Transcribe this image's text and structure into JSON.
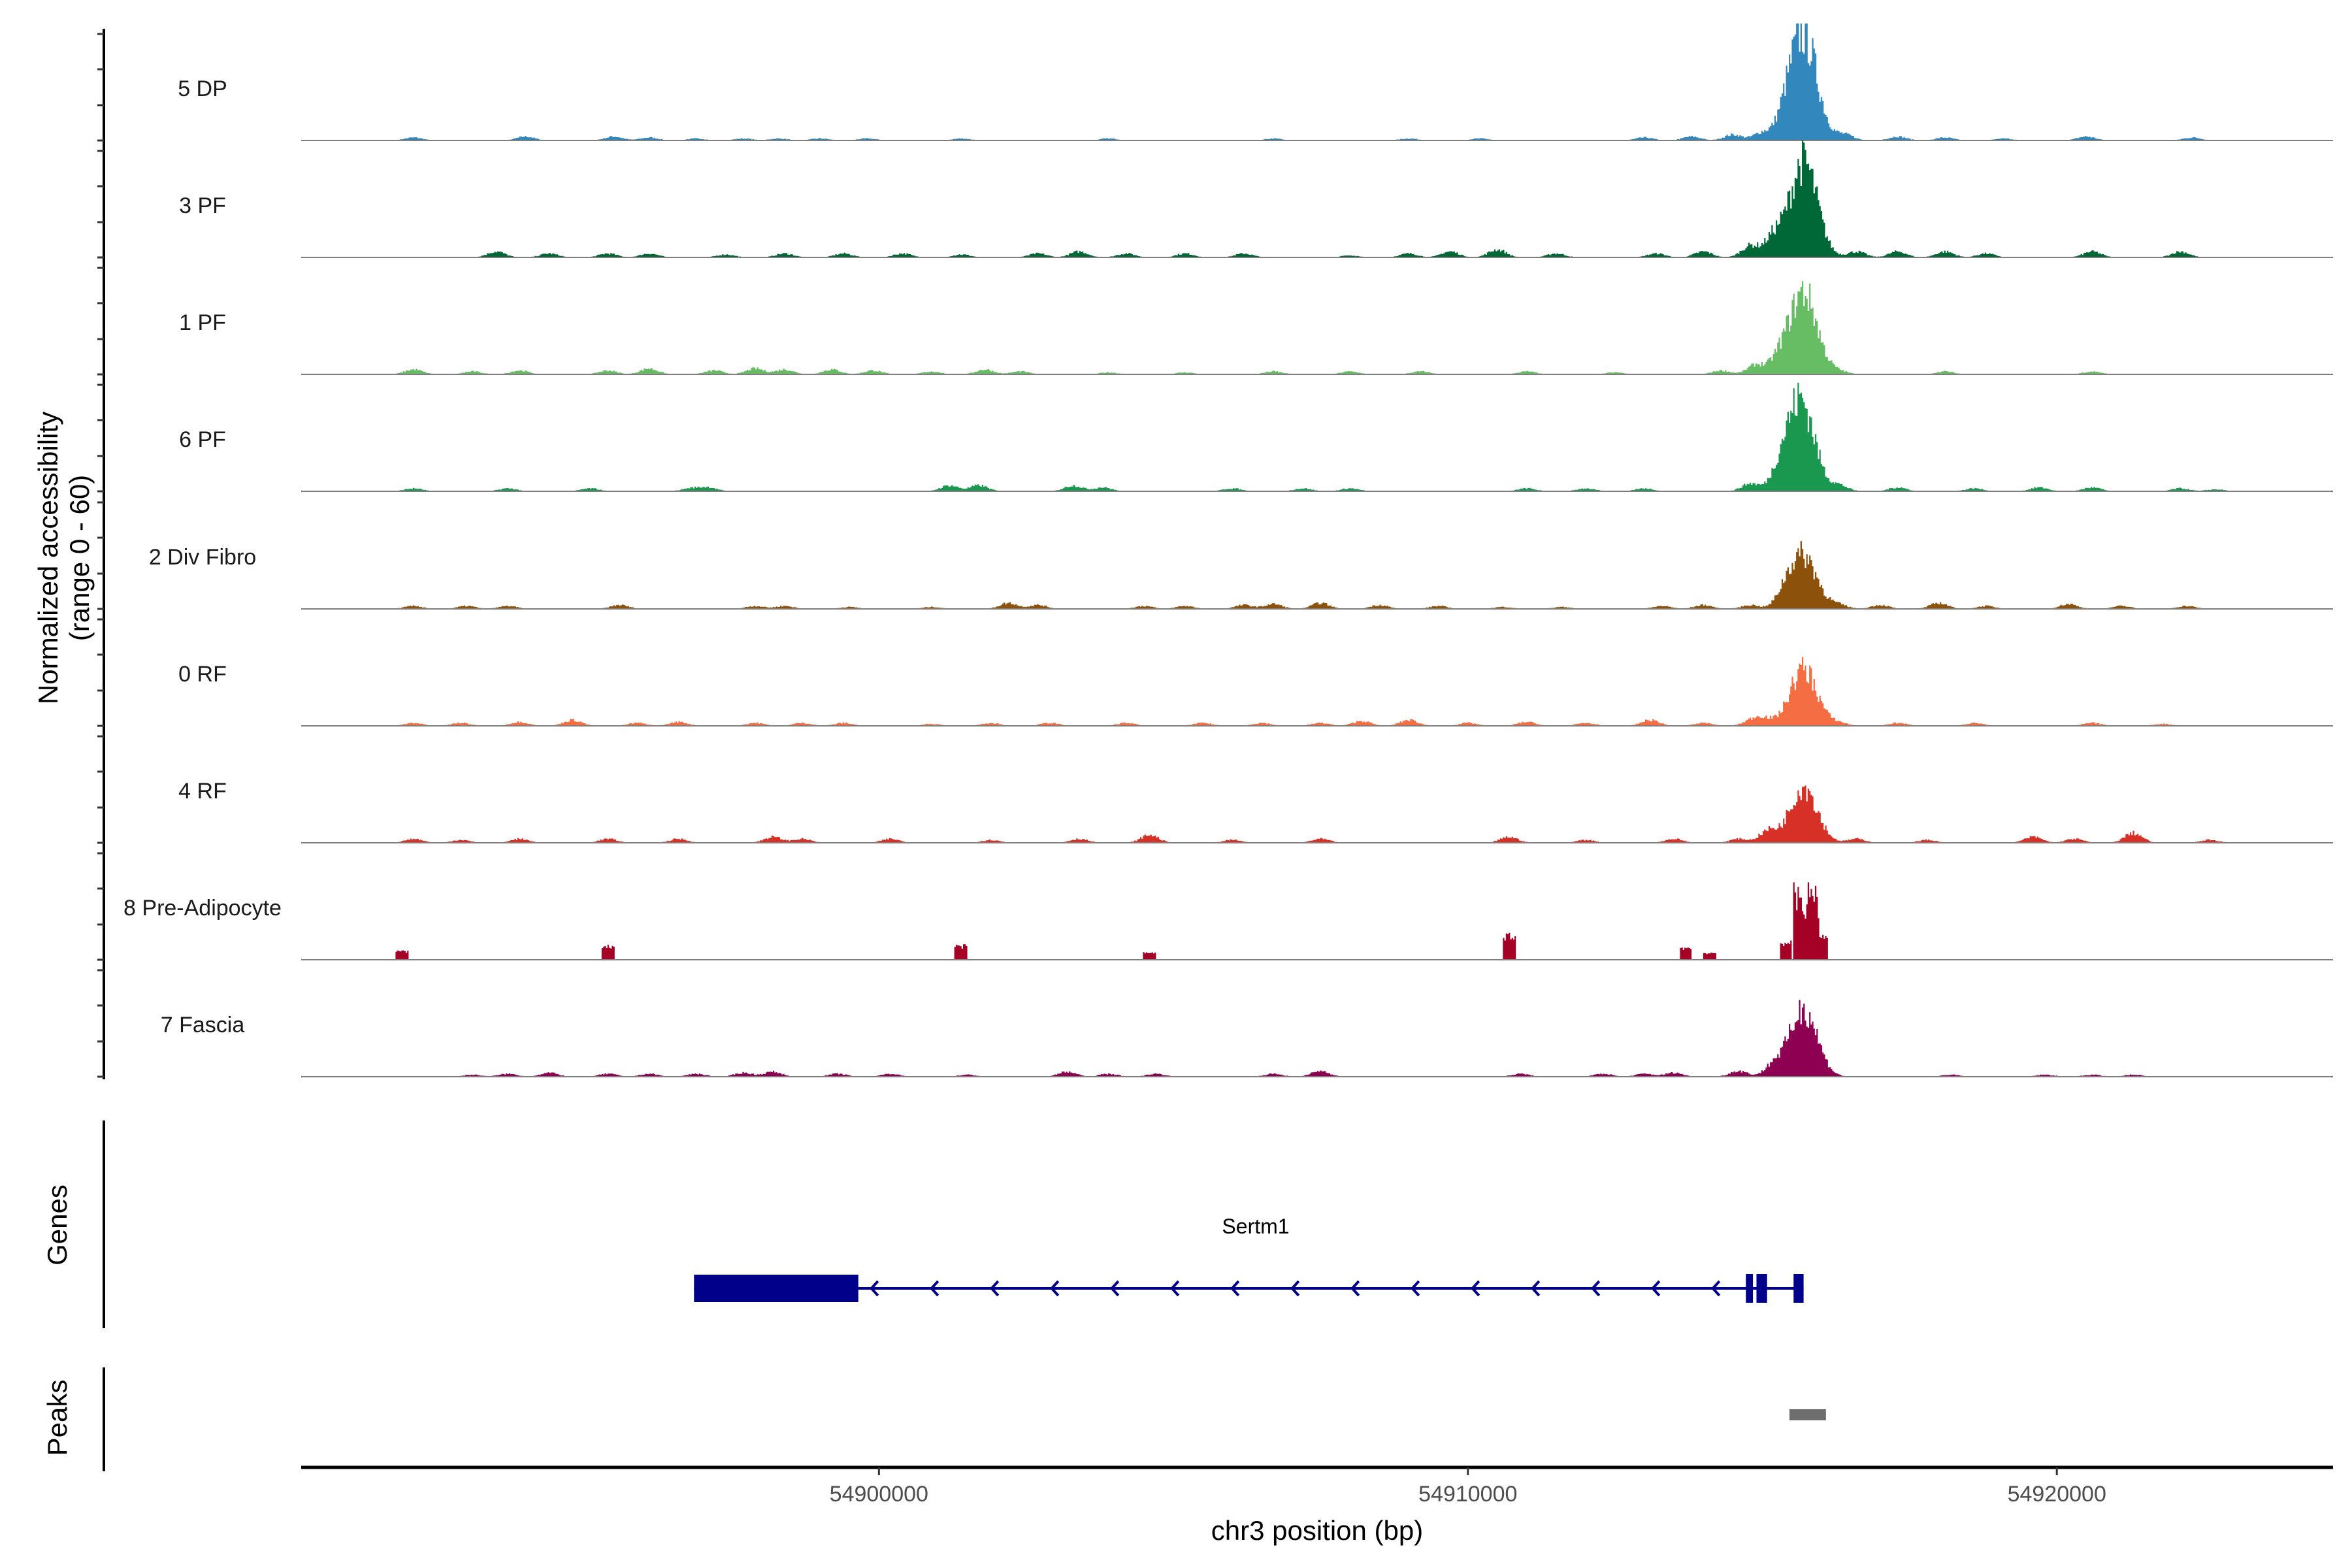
{
  "chart_data": {
    "type": "area",
    "title": "",
    "xlabel": "chr3 position (bp)",
    "ylabel": [
      "Normalized accessibility",
      "(range 0 - 60)"
    ],
    "xlim": [
      54890190,
      54924690
    ],
    "ylim": [
      0,
      60
    ],
    "x_ticks": [
      54900000,
      54910000,
      54920000
    ],
    "x_tick_labels": [
      "54900000",
      "54910000",
      "54920000"
    ],
    "grid": false,
    "tracks": [
      {
        "name": "5 DP",
        "color": "#3288bd",
        "main_peak": [
          54915700,
          54
        ],
        "bumps": [
          [
            54892100,
            1.5
          ],
          [
            54894000,
            2
          ],
          [
            54895500,
            2
          ],
          [
            54896100,
            1.5
          ],
          [
            54896900,
            1
          ],
          [
            54897700,
            1
          ],
          [
            54898300,
            1
          ],
          [
            54899000,
            1
          ],
          [
            54899800,
            1
          ],
          [
            54901400,
            1
          ],
          [
            54903900,
            1
          ],
          [
            54906700,
            1
          ],
          [
            54909000,
            1
          ],
          [
            54910200,
            1
          ],
          [
            54913000,
            1.5
          ],
          [
            54913800,
            2
          ],
          [
            54914500,
            3
          ],
          [
            54915000,
            4
          ],
          [
            54915400,
            7
          ],
          [
            54916400,
            3
          ],
          [
            54917300,
            2
          ],
          [
            54918100,
            1.5
          ],
          [
            54919100,
            1
          ],
          [
            54920500,
            2
          ],
          [
            54922300,
            1.5
          ]
        ]
      },
      {
        "name": "3 PF",
        "color": "#006837",
        "main_peak": [
          54915700,
          49
        ],
        "bumps": [
          [
            54893500,
            3
          ],
          [
            54894400,
            2
          ],
          [
            54895400,
            2
          ],
          [
            54896100,
            2
          ],
          [
            54897400,
            1.5
          ],
          [
            54898400,
            2
          ],
          [
            54899400,
            2
          ],
          [
            54900400,
            2
          ],
          [
            54901400,
            1.5
          ],
          [
            54902700,
            2
          ],
          [
            54903400,
            3
          ],
          [
            54904200,
            2
          ],
          [
            54905200,
            2
          ],
          [
            54906200,
            2
          ],
          [
            54908000,
            1
          ],
          [
            54909000,
            2
          ],
          [
            54909700,
            3
          ],
          [
            54910500,
            4
          ],
          [
            54911500,
            2
          ],
          [
            54913200,
            2
          ],
          [
            54914000,
            3
          ],
          [
            54914800,
            6
          ],
          [
            54915200,
            10
          ],
          [
            54916600,
            3
          ],
          [
            54917300,
            3
          ],
          [
            54918100,
            3
          ],
          [
            54918800,
            2
          ],
          [
            54920600,
            3
          ],
          [
            54922100,
            3
          ]
        ]
      },
      {
        "name": "1 PF",
        "color": "#66bd63",
        "main_peak": [
          54915700,
          42
        ],
        "bumps": [
          [
            54892100,
            2.5
          ],
          [
            54893100,
            1.5
          ],
          [
            54893900,
            2
          ],
          [
            54895400,
            2
          ],
          [
            54896100,
            3
          ],
          [
            54897200,
            2
          ],
          [
            54897900,
            3
          ],
          [
            54898400,
            2.5
          ],
          [
            54899200,
            2.5
          ],
          [
            54899900,
            2
          ],
          [
            54900900,
            1.5
          ],
          [
            54901800,
            2.5
          ],
          [
            54902400,
            1.5
          ],
          [
            54903900,
            1
          ],
          [
            54905200,
            1
          ],
          [
            54906700,
            1.5
          ],
          [
            54908000,
            1.5
          ],
          [
            54909200,
            1.5
          ],
          [
            54911000,
            1.5
          ],
          [
            54912500,
            1
          ],
          [
            54914300,
            2
          ],
          [
            54914900,
            5
          ],
          [
            54915300,
            7
          ],
          [
            54916300,
            1.5
          ],
          [
            54918100,
            1.5
          ],
          [
            54920600,
            1.5
          ]
        ]
      },
      {
        "name": "6 PF",
        "color": "#1a9850",
        "main_peak": [
          54915650,
          47
        ],
        "bumps": [
          [
            54892100,
            1.5
          ],
          [
            54893700,
            1.5
          ],
          [
            54895100,
            1.5
          ],
          [
            54896800,
            1.5
          ],
          [
            54897100,
            2
          ],
          [
            54901200,
            3
          ],
          [
            54901700,
            3
          ],
          [
            54903300,
            3
          ],
          [
            54903800,
            2
          ],
          [
            54906000,
            1.5
          ],
          [
            54907200,
            1.5
          ],
          [
            54908000,
            1.5
          ],
          [
            54911000,
            1.5
          ],
          [
            54912000,
            1.5
          ],
          [
            54913000,
            1.5
          ],
          [
            54914800,
            4
          ],
          [
            54915300,
            8
          ],
          [
            54916300,
            3
          ],
          [
            54917300,
            2
          ],
          [
            54918600,
            1.5
          ],
          [
            54919700,
            2
          ],
          [
            54920600,
            2
          ],
          [
            54922100,
            1.5
          ],
          [
            54922700,
            1
          ]
        ]
      },
      {
        "name": "2 Div Fibro",
        "color": "#8c510a",
        "main_peak": [
          54915700,
          27
        ],
        "bumps": [
          [
            54892100,
            1.5
          ],
          [
            54893000,
            1.5
          ],
          [
            54893700,
            1.5
          ],
          [
            54895600,
            2
          ],
          [
            54897900,
            1.5
          ],
          [
            54898400,
            1.5
          ],
          [
            54899500,
            1
          ],
          [
            54900900,
            1
          ],
          [
            54902200,
            3
          ],
          [
            54902700,
            2
          ],
          [
            54904500,
            1.5
          ],
          [
            54905200,
            1.5
          ],
          [
            54906200,
            2
          ],
          [
            54906700,
            2.5
          ],
          [
            54907500,
            3
          ],
          [
            54908500,
            2
          ],
          [
            54909500,
            1.5
          ],
          [
            54910600,
            1
          ],
          [
            54911600,
            1
          ],
          [
            54913300,
            1.5
          ],
          [
            54914000,
            2
          ],
          [
            54914800,
            2
          ],
          [
            54915400,
            6
          ],
          [
            54916300,
            2
          ],
          [
            54917000,
            2
          ],
          [
            54918000,
            3
          ],
          [
            54918800,
            1.5
          ],
          [
            54920200,
            2.5
          ],
          [
            54921100,
            1.5
          ],
          [
            54922200,
            1.5
          ]
        ]
      },
      {
        "name": "0 RF",
        "color": "#f46d43",
        "main_peak": [
          54915700,
          29
        ],
        "bumps": [
          [
            54892100,
            1.5
          ],
          [
            54892900,
            1.5
          ],
          [
            54893900,
            2
          ],
          [
            54894800,
            3
          ],
          [
            54895900,
            1.5
          ],
          [
            54896600,
            2
          ],
          [
            54897900,
            1.5
          ],
          [
            54898700,
            1.5
          ],
          [
            54899400,
            1.5
          ],
          [
            54900900,
            1
          ],
          [
            54901900,
            1.5
          ],
          [
            54902900,
            1.5
          ],
          [
            54904200,
            1.5
          ],
          [
            54905500,
            1.5
          ],
          [
            54906500,
            1.5
          ],
          [
            54907500,
            1.5
          ],
          [
            54908200,
            2.5
          ],
          [
            54909000,
            3
          ],
          [
            54910000,
            1.5
          ],
          [
            54911000,
            2
          ],
          [
            54912000,
            1.5
          ],
          [
            54913100,
            3
          ],
          [
            54914000,
            1.5
          ],
          [
            54914800,
            2
          ],
          [
            54915000,
            4
          ],
          [
            54916300,
            1.5
          ],
          [
            54917300,
            1.5
          ],
          [
            54918600,
            1.5
          ],
          [
            54920600,
            1.5
          ],
          [
            54921800,
            1
          ]
        ]
      },
      {
        "name": "4 RF",
        "color": "#d73027",
        "main_peak": [
          54915700,
          29
        ],
        "bumps": [
          [
            54892100,
            2
          ],
          [
            54892900,
            1.5
          ],
          [
            54893900,
            2
          ],
          [
            54895400,
            2
          ],
          [
            54896600,
            2
          ],
          [
            54898200,
            3
          ],
          [
            54898700,
            2
          ],
          [
            54900200,
            2
          ],
          [
            54901900,
            1.5
          ],
          [
            54903400,
            2
          ],
          [
            54904600,
            4
          ],
          [
            54906000,
            1.5
          ],
          [
            54907500,
            2
          ],
          [
            54910700,
            3
          ],
          [
            54912000,
            1.5
          ],
          [
            54913500,
            2
          ],
          [
            54914600,
            2
          ],
          [
            54915100,
            6
          ],
          [
            54916600,
            2
          ],
          [
            54917800,
            1.5
          ],
          [
            54919600,
            3
          ],
          [
            54920300,
            2
          ],
          [
            54921300,
            5
          ],
          [
            54922600,
            1.5
          ]
        ]
      },
      {
        "name": "8 Pre-Adipocyte",
        "color": "#a50026",
        "main_peak": [
          54915750,
          40
        ],
        "sparse": true,
        "bumps": [
          [
            54891900,
            5
          ],
          [
            54895400,
            8
          ],
          [
            54901400,
            8
          ],
          [
            54904600,
            4
          ],
          [
            54910700,
            14
          ],
          [
            54913700,
            7
          ],
          [
            54914100,
            4
          ],
          [
            54915400,
            10
          ],
          [
            54915850,
            20
          ],
          [
            54916000,
            14
          ]
        ]
      },
      {
        "name": "7 Fascia",
        "color": "#8e0152",
        "main_peak": [
          54915700,
          35
        ],
        "bumps": [
          [
            54893100,
            1
          ],
          [
            54893700,
            1.5
          ],
          [
            54894400,
            2
          ],
          [
            54895400,
            1.5
          ],
          [
            54896100,
            1.5
          ],
          [
            54896900,
            1.5
          ],
          [
            54897700,
            2
          ],
          [
            54898200,
            2.5
          ],
          [
            54899300,
            1.5
          ],
          [
            54900200,
            1.5
          ],
          [
            54901500,
            1
          ],
          [
            54903200,
            2.5
          ],
          [
            54903900,
            1.5
          ],
          [
            54904700,
            1.5
          ],
          [
            54906700,
            1.5
          ],
          [
            54907500,
            3
          ],
          [
            54910900,
            1.5
          ],
          [
            54912300,
            1.5
          ],
          [
            54913000,
            1.5
          ],
          [
            54913500,
            2
          ],
          [
            54914600,
            3
          ],
          [
            54915200,
            6
          ],
          [
            54918200,
            1
          ],
          [
            54919800,
            1
          ],
          [
            54920600,
            1
          ],
          [
            54921300,
            1
          ]
        ]
      }
    ],
    "genes": {
      "panel_label": "Genes",
      "items": [
        {
          "name": "Sertm1",
          "strand": "-",
          "color": "#00008b",
          "start": 54896860,
          "end": 54915700,
          "exons": [
            [
              54896860,
              54899650,
              "thick"
            ],
            [
              54914720,
              54914840,
              "thick"
            ],
            [
              54914900,
              54915080,
              "thick"
            ],
            [
              54915530,
              54915700,
              "thick"
            ]
          ]
        }
      ]
    },
    "peaks": {
      "panel_label": "Peaks",
      "color": "#6e6e6e",
      "items": [
        [
          54915460,
          54916080
        ]
      ]
    }
  }
}
